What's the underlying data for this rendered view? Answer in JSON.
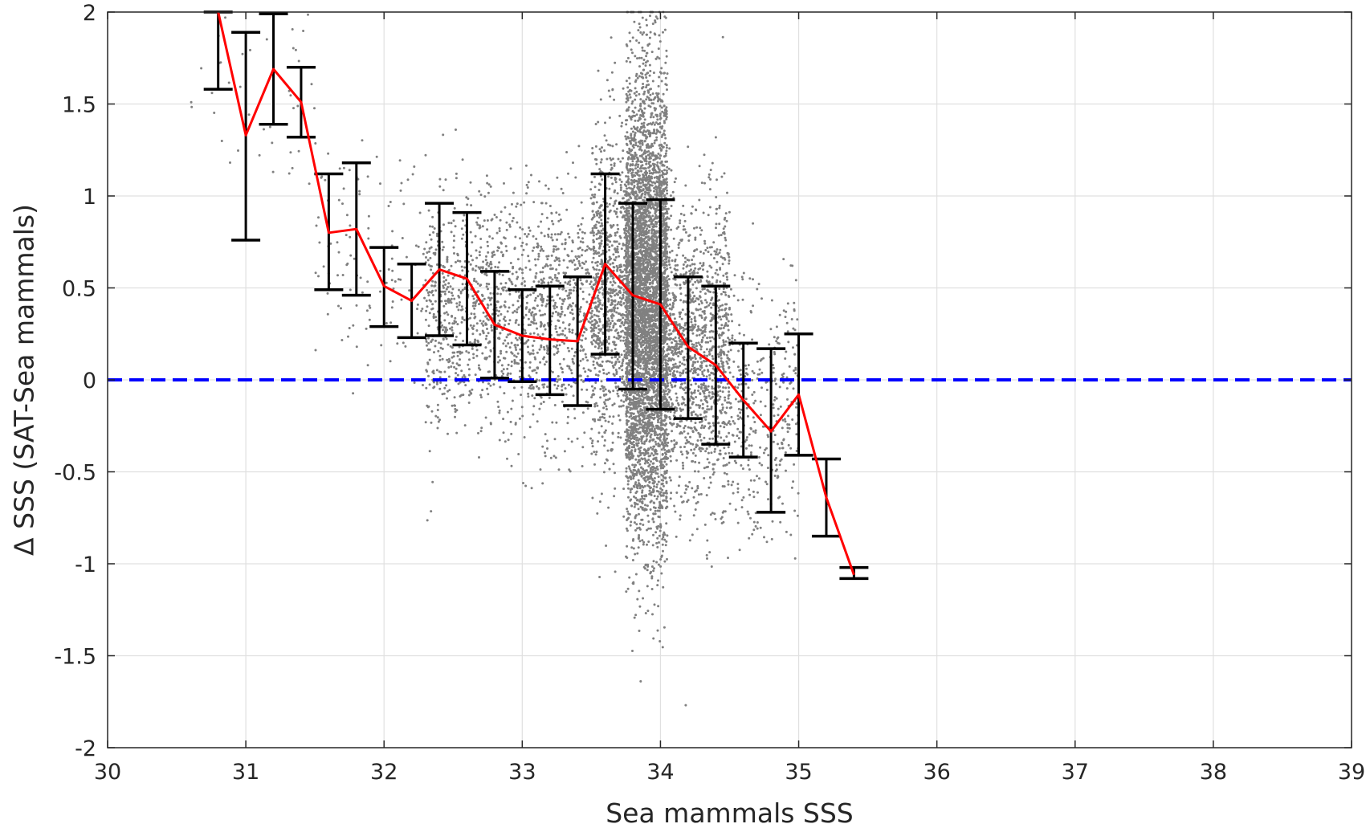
{
  "chart_data": {
    "type": "scatter",
    "title": "",
    "xlabel": "Sea mammals SSS",
    "ylabel": "Δ SSS (SAT-Sea mammals)",
    "xlim": [
      30,
      39
    ],
    "ylim": [
      -2,
      2
    ],
    "xticks": [
      30,
      31,
      32,
      33,
      34,
      35,
      36,
      37,
      38,
      39
    ],
    "yticks": [
      -2,
      -1.5,
      -1,
      -0.5,
      0,
      0.5,
      1,
      1.5,
      2
    ],
    "xtick_labels": [
      "30",
      "31",
      "32",
      "33",
      "34",
      "35",
      "36",
      "37",
      "38",
      "39"
    ],
    "ytick_labels": [
      "-2",
      "-1.5",
      "-1",
      "-0.5",
      "0",
      "0.5",
      "1",
      "1.5",
      "2"
    ],
    "grid": true,
    "legend": "none",
    "colors": {
      "scatter": "#808080",
      "mean_line": "#ff0000",
      "error_bars": "#000000",
      "zero_line": "#0000ff",
      "grid": "#e0e0e0",
      "axes": "#262626"
    },
    "scatter_density": [
      {
        "x_range": [
          30.6,
          31.5
        ],
        "y_mean": 1.6,
        "y_std": 0.3,
        "count": 40
      },
      {
        "x_range": [
          31.5,
          32.3
        ],
        "y_mean": 0.65,
        "y_std": 0.3,
        "count": 120
      },
      {
        "x_range": [
          32.3,
          33.5
        ],
        "y_mean": 0.35,
        "y_std": 0.32,
        "count": 1500
      },
      {
        "x_range": [
          33.5,
          33.75
        ],
        "y_mean": 0.45,
        "y_std": 0.45,
        "count": 900
      },
      {
        "x_range": [
          33.75,
          34.05
        ],
        "y_mean": 0.4,
        "y_std": 0.6,
        "count": 5000
      },
      {
        "x_range": [
          34.05,
          34.5
        ],
        "y_mean": 0.15,
        "y_std": 0.4,
        "count": 1300
      },
      {
        "x_range": [
          34.5,
          35.0
        ],
        "y_mean": -0.15,
        "y_std": 0.35,
        "count": 350
      }
    ],
    "series": [
      {
        "kind": "mean_with_error_bars",
        "x": [
          30.8,
          31.0,
          31.2,
          31.4,
          31.6,
          31.8,
          32.0,
          32.2,
          32.4,
          32.6,
          32.8,
          33.0,
          33.2,
          33.4,
          33.6,
          33.8,
          34.0,
          34.2,
          34.4,
          34.6,
          34.8,
          35.0,
          35.2,
          35.4
        ],
        "y": [
          2.0,
          1.33,
          1.69,
          1.51,
          0.8,
          0.82,
          0.51,
          0.43,
          0.6,
          0.55,
          0.3,
          0.24,
          0.22,
          0.21,
          0.63,
          0.46,
          0.41,
          0.18,
          0.08,
          -0.11,
          -0.28,
          -0.08,
          -0.64,
          -1.06
        ],
        "lower": [
          1.58,
          0.76,
          1.39,
          1.32,
          0.49,
          0.46,
          0.29,
          0.23,
          0.24,
          0.19,
          0.01,
          -0.01,
          -0.08,
          -0.14,
          0.14,
          -0.05,
          -0.16,
          -0.21,
          -0.35,
          -0.42,
          -0.72,
          -0.41,
          -0.85,
          -1.08
        ],
        "upper": [
          2.0,
          1.89,
          1.99,
          1.7,
          1.12,
          1.18,
          0.72,
          0.63,
          0.96,
          0.91,
          0.59,
          0.49,
          0.51,
          0.56,
          1.12,
          0.96,
          0.98,
          0.56,
          0.51,
          0.2,
          0.17,
          0.25,
          -0.43,
          -1.02
        ]
      }
    ],
    "reference_line": {
      "y": 0,
      "style": "dashed"
    }
  }
}
